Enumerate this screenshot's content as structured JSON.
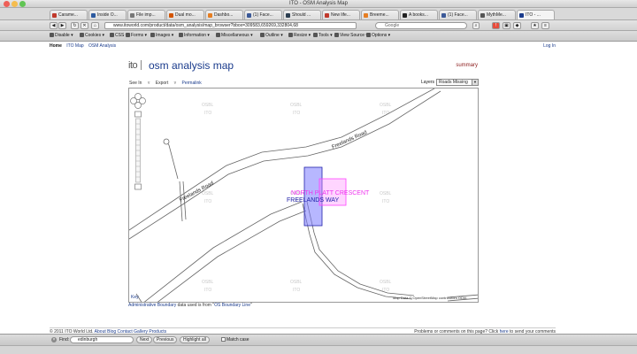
{
  "window": {
    "title": "ITO - OSM Analysis Map"
  },
  "tabs": [
    {
      "label": "Carame...",
      "color": "#c0392b"
    },
    {
      "label": "Inside O...",
      "color": "#2c5aa0"
    },
    {
      "label": "File imp...",
      "color": "#777777"
    },
    {
      "label": "Dual mo...",
      "color": "#d35400"
    },
    {
      "label": "Dashbo...",
      "color": "#e67e22"
    },
    {
      "label": "(1) Face...",
      "color": "#3b5998"
    },
    {
      "label": "Should ...",
      "color": "#2c3e50"
    },
    {
      "label": "New life...",
      "color": "#c0392b"
    },
    {
      "label": "Breeme...",
      "color": "#e67e22"
    },
    {
      "label": "A books...",
      "color": "#222222"
    },
    {
      "label": "(1) Face...",
      "color": "#3b5998"
    },
    {
      "label": "MythMe...",
      "color": "#555555"
    },
    {
      "label": "ITO - ...",
      "color": "#1a3b8c"
    }
  ],
  "nav": {
    "url": "www.itoworld.com/product/data/osm_analysis/map_browser?bbox=309583,659269,332804,68",
    "search_placeholder": "Google"
  },
  "toolbar": {
    "items": [
      "Disable",
      "Cookies",
      "CSS",
      "Forms",
      "Images",
      "Information",
      "Miscellaneous",
      "Outline",
      "Resize",
      "Tools",
      "View Source",
      "Options"
    ]
  },
  "page": {
    "topnav": [
      "Home",
      "ITO Map",
      "OSM Analysis"
    ],
    "login": "Log In",
    "logo": "ito",
    "title": "osm analysis map",
    "summary": "summary",
    "map_tools": {
      "see_in": "See In",
      "export": "Export",
      "permalink": "Permalink"
    },
    "layers_label": "Layers",
    "layers_value": "Roads Missing"
  },
  "map": {
    "watermark_ito": "ITO",
    "watermark_osbl": "OSBL",
    "road_labels": [
      "Freelands Road",
      "Freelands Road"
    ],
    "street_label_1": "NORTH PLATT CRESCENT",
    "street_label_2": "FREELANDS WAY",
    "key_label": "Key",
    "attribution": "Map Data © OpenStreetMap contributors ODbL",
    "colors": {
      "highlight_purple": "#ff66ff",
      "highlight_blue": "#5555dd"
    }
  },
  "attrib": {
    "prefix": "Administrative Boundary",
    "middle": "data used is from \"",
    "source": "OS Boundary Line",
    "suffix": "\""
  },
  "footer": {
    "copyright": "© 2011 ITO World Ltd.",
    "links": [
      "About",
      "Blog",
      "Contact",
      "Gallery",
      "Products"
    ],
    "right_text": "Problems or comments on this page? Click",
    "right_link": "here",
    "right_suffix": "to send your comments"
  },
  "findbar": {
    "label": "Find:",
    "value": "edinburgh",
    "next": "Next",
    "previous": "Previous",
    "highlight": "Highlight all",
    "match_case": "Match case"
  }
}
